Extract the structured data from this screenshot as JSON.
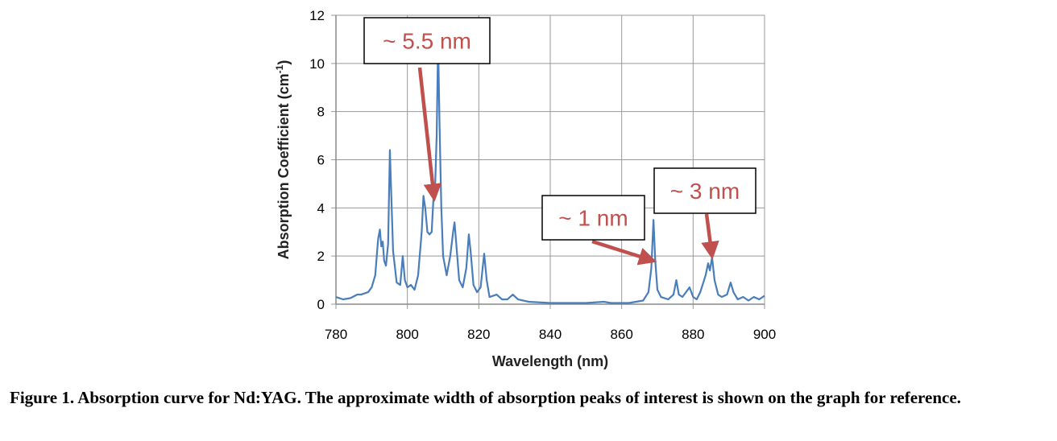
{
  "chart_data": {
    "type": "line",
    "title": "",
    "xlabel": "Wavelength (nm)",
    "ylabel": "Absorption Coefficient (cm",
    "ylabel_superscript": "-1",
    "ylabel_suffix": ")",
    "xlim": [
      780,
      900
    ],
    "ylim": [
      0,
      12
    ],
    "xticks": [
      780,
      800,
      820,
      840,
      860,
      880,
      900
    ],
    "yticks": [
      0,
      2,
      4,
      6,
      8,
      10,
      12
    ],
    "grid": true,
    "line_color": "#4A7EBB",
    "annotation_color": "#C0504D",
    "series": [
      {
        "x": [
          780,
          782,
          784,
          786,
          787,
          789,
          790,
          791,
          791.8,
          792.3,
          792.7,
          793.1,
          793.5,
          794,
          794.6,
          795.1,
          795.5,
          796,
          797,
          798,
          798.7,
          799.3,
          800,
          801,
          802,
          803,
          804,
          804.5,
          805,
          805.6,
          806.2,
          806.8,
          807.3,
          807.7,
          808.2,
          808.6,
          809,
          809.5,
          810,
          811,
          812,
          812.8,
          813.2,
          813.8,
          814.5,
          815.5,
          816.5,
          817.2,
          817.7,
          818.5,
          819.5,
          820.5,
          821.5,
          822.2,
          823,
          825,
          826.5,
          828,
          829.5,
          831,
          834,
          840,
          850,
          855,
          857,
          862,
          866,
          867.5,
          868.3,
          868.9,
          869.4,
          870,
          871,
          873,
          874.5,
          875.3,
          876,
          877,
          878,
          879,
          880,
          881,
          882,
          883.5,
          884.2,
          884.7,
          885.3,
          886,
          887,
          888,
          889.5,
          890.5,
          891.3,
          892.5,
          894,
          895.5,
          897,
          898.5,
          900
        ],
        "y": [
          0.3,
          0.2,
          0.25,
          0.4,
          0.4,
          0.5,
          0.7,
          1.2,
          2.7,
          3.1,
          2.4,
          2.6,
          1.8,
          1.6,
          2.5,
          6.4,
          4.5,
          2.2,
          0.9,
          0.8,
          2.0,
          1.0,
          0.7,
          0.8,
          0.6,
          1.2,
          3.0,
          4.5,
          4.0,
          3.0,
          2.9,
          3.0,
          4.4,
          4.6,
          7.0,
          10.9,
          7.5,
          4.0,
          2.0,
          1.2,
          2.0,
          3.0,
          3.4,
          2.3,
          1.0,
          0.7,
          1.5,
          2.9,
          2.2,
          0.8,
          0.5,
          0.7,
          2.1,
          1.0,
          0.3,
          0.4,
          0.2,
          0.2,
          0.4,
          0.2,
          0.1,
          0.05,
          0.05,
          0.1,
          0.05,
          0.05,
          0.15,
          0.5,
          1.5,
          3.5,
          1.8,
          0.6,
          0.3,
          0.2,
          0.4,
          1.0,
          0.4,
          0.3,
          0.5,
          0.7,
          0.3,
          0.2,
          0.5,
          1.2,
          1.7,
          1.4,
          1.95,
          1.0,
          0.4,
          0.3,
          0.4,
          0.9,
          0.5,
          0.2,
          0.3,
          0.15,
          0.3,
          0.2,
          0.35
        ]
      }
    ],
    "annotations": [
      {
        "text": "~ 5.5 nm",
        "points_to": [
          807.5,
          4.4
        ]
      },
      {
        "text": "~ 1 nm",
        "points_to": [
          868.9,
          1.8
        ]
      },
      {
        "text": "~ 3 nm",
        "points_to": [
          885.3,
          2.0
        ]
      }
    ]
  },
  "caption": "Figure 1.  Absorption curve for Nd:YAG.  The approximate width of absorption peaks of interest is shown on the graph for reference."
}
